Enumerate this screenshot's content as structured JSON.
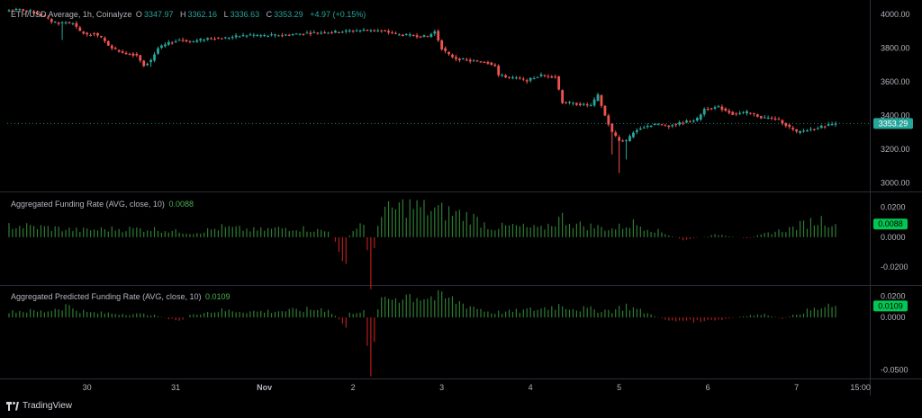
{
  "chart_data": [
    {
      "type": "candlestick",
      "title": "ETH/USD Average, 1h, Coinalyze",
      "ohlc": {
        "o_label": "O",
        "o": "3347.97",
        "h_label": "H",
        "h": "3362.16",
        "l_label": "L",
        "l": "3336.63",
        "c_label": "C",
        "c": "3353.29",
        "change": "+4.97 (+0.15%)"
      },
      "y_ticks": [
        "4000.00",
        "3800.00",
        "3600.00",
        "3400.00",
        "3200.00",
        "3000.00"
      ],
      "y_tick_values": [
        4000,
        3800,
        3600,
        3400,
        3200,
        3000
      ],
      "ylim": [
        2950,
        4060
      ],
      "last_price": "3353.29",
      "last_price_value": 3353.29,
      "close_path": [
        [
          0,
          4025
        ],
        [
          3,
          4030
        ],
        [
          6,
          4020
        ],
        [
          8,
          4005
        ],
        [
          10,
          3985
        ],
        [
          12,
          3960
        ],
        [
          14,
          3950
        ],
        [
          16,
          3955
        ],
        [
          18,
          3945
        ],
        [
          20,
          3900
        ],
        [
          22,
          3880
        ],
        [
          24,
          3890
        ],
        [
          26,
          3860
        ],
        [
          28,
          3820
        ],
        [
          30,
          3790
        ],
        [
          33,
          3770
        ],
        [
          36,
          3760
        ],
        [
          38,
          3700
        ],
        [
          40,
          3730
        ],
        [
          42,
          3800
        ],
        [
          45,
          3830
        ],
        [
          48,
          3850
        ],
        [
          52,
          3840
        ],
        [
          56,
          3860
        ],
        [
          60,
          3860
        ],
        [
          64,
          3870
        ],
        [
          68,
          3880
        ],
        [
          72,
          3875
        ],
        [
          78,
          3880
        ],
        [
          84,
          3890
        ],
        [
          90,
          3895
        ],
        [
          94,
          3900
        ],
        [
          98,
          3905
        ],
        [
          102,
          3910
        ],
        [
          106,
          3900
        ],
        [
          110,
          3880
        ],
        [
          114,
          3875
        ],
        [
          118,
          3870
        ],
        [
          120,
          3900
        ],
        [
          122,
          3800
        ],
        [
          124,
          3760
        ],
        [
          126,
          3740
        ],
        [
          130,
          3725
        ],
        [
          134,
          3720
        ],
        [
          137,
          3700
        ],
        [
          138,
          3640
        ],
        [
          142,
          3625
        ],
        [
          146,
          3610
        ],
        [
          150,
          3640
        ],
        [
          154,
          3630
        ],
        [
          156,
          3480
        ],
        [
          160,
          3470
        ],
        [
          164,
          3460
        ],
        [
          166,
          3520
        ],
        [
          168,
          3400
        ],
        [
          170,
          3300
        ],
        [
          172,
          3250
        ],
        [
          174,
          3250
        ],
        [
          176,
          3300
        ],
        [
          178,
          3330
        ],
        [
          182,
          3350
        ],
        [
          186,
          3340
        ],
        [
          190,
          3360
        ],
        [
          194,
          3380
        ],
        [
          196,
          3440
        ],
        [
          200,
          3450
        ],
        [
          204,
          3410
        ],
        [
          208,
          3420
        ],
        [
          212,
          3390
        ],
        [
          216,
          3380
        ],
        [
          218,
          3360
        ],
        [
          220,
          3330
        ],
        [
          222,
          3300
        ],
        [
          226,
          3320
        ],
        [
          230,
          3340
        ],
        [
          232,
          3350
        ],
        [
          233,
          3353.29
        ]
      ],
      "low_wicks": [
        [
          40,
          3690
        ],
        [
          170,
          3170
        ],
        [
          172,
          3060
        ],
        [
          174,
          3140
        ],
        [
          15,
          3850
        ]
      ],
      "series": [
        {
          "name": "ETH/USD Average",
          "color_up": "#26a69a",
          "color_down": "#ef5350"
        }
      ]
    },
    {
      "type": "bar",
      "title": "Aggregated Funding Rate (AVG, close, 10)",
      "last_value": "0.0088",
      "last_value_num": 0.0088,
      "y_ticks": [
        "0.0200",
        "0.0000",
        "-0.0200"
      ],
      "y_tick_values": [
        0.02,
        0,
        -0.02
      ],
      "ylim": [
        -0.032,
        0.03
      ],
      "profile": [
        [
          0,
          0.0085
        ],
        [
          10,
          0.007
        ],
        [
          20,
          0.005
        ],
        [
          30,
          0.006
        ],
        [
          40,
          0.006
        ],
        [
          48,
          0.004
        ],
        [
          52,
          0.003
        ],
        [
          60,
          0.007
        ],
        [
          70,
          0.005
        ],
        [
          80,
          0.007
        ],
        [
          90,
          0.004
        ],
        [
          95,
          -0.017
        ],
        [
          96,
          0.002
        ],
        [
          100,
          0.012
        ],
        [
          102,
          -0.028
        ],
        [
          104,
          0.012
        ],
        [
          106,
          0.018
        ],
        [
          112,
          0.023
        ],
        [
          118,
          0.02
        ],
        [
          124,
          0.018
        ],
        [
          130,
          0.015
        ],
        [
          136,
          0.007
        ],
        [
          142,
          0.008
        ],
        [
          150,
          0.006
        ],
        [
          156,
          0.014
        ],
        [
          160,
          0.009
        ],
        [
          170,
          0.006
        ],
        [
          176,
          0.01
        ],
        [
          180,
          0.007
        ],
        [
          190,
          -0.002
        ],
        [
          200,
          0.002
        ],
        [
          208,
          -0.001
        ],
        [
          214,
          0.003
        ],
        [
          220,
          0.006
        ],
        [
          226,
          0.011
        ],
        [
          230,
          0.013
        ],
        [
          233,
          0.0088
        ]
      ]
    },
    {
      "type": "bar",
      "title": "Aggregated Predicted Funding Rate (AVG, close, 10)",
      "last_value": "0.0109",
      "last_value_num": 0.0109,
      "y_ticks": [
        "0.0200",
        "0.0000",
        "-0.0500"
      ],
      "y_tick_values": [
        0.02,
        0,
        -0.05
      ],
      "ylim": [
        -0.058,
        0.03
      ],
      "profile": [
        [
          0,
          0.007
        ],
        [
          10,
          0.006
        ],
        [
          16,
          0.012
        ],
        [
          22,
          0.005
        ],
        [
          30,
          0.004
        ],
        [
          40,
          0.003
        ],
        [
          48,
          -0.004
        ],
        [
          52,
          0.004
        ],
        [
          60,
          0.007
        ],
        [
          70,
          0.006
        ],
        [
          80,
          0.007
        ],
        [
          90,
          0.009
        ],
        [
          95,
          -0.01
        ],
        [
          96,
          0.004
        ],
        [
          100,
          0.008
        ],
        [
          102,
          -0.052
        ],
        [
          104,
          0.011
        ],
        [
          106,
          0.019
        ],
        [
          112,
          0.023
        ],
        [
          118,
          0.021
        ],
        [
          124,
          0.019
        ],
        [
          130,
          0.012
        ],
        [
          136,
          0.005
        ],
        [
          142,
          0.006
        ],
        [
          150,
          0.009
        ],
        [
          156,
          0.013
        ],
        [
          160,
          0.009
        ],
        [
          170,
          0.007
        ],
        [
          174,
          0.012
        ],
        [
          180,
          0.004
        ],
        [
          186,
          -0.003
        ],
        [
          194,
          -0.004
        ],
        [
          200,
          -0.003
        ],
        [
          208,
          0.002
        ],
        [
          214,
          0.003
        ],
        [
          218,
          -0.002
        ],
        [
          224,
          0.006
        ],
        [
          230,
          0.01
        ],
        [
          233,
          0.0109
        ]
      ]
    }
  ],
  "x_axis": {
    "labels": [
      "30",
      "31",
      "Nov",
      "2",
      "3",
      "4",
      "5",
      "6",
      "7",
      "15:00"
    ],
    "positions": [
      22,
      47,
      72,
      97,
      122,
      147,
      172,
      197,
      222,
      240
    ]
  },
  "brand": {
    "name": "TradingView"
  },
  "colors": {
    "bg": "#000000",
    "up": "#26a69a",
    "down": "#ef5350",
    "green": "#4caf50",
    "text": "#d1d4dc",
    "grid": "#2a2e39"
  }
}
